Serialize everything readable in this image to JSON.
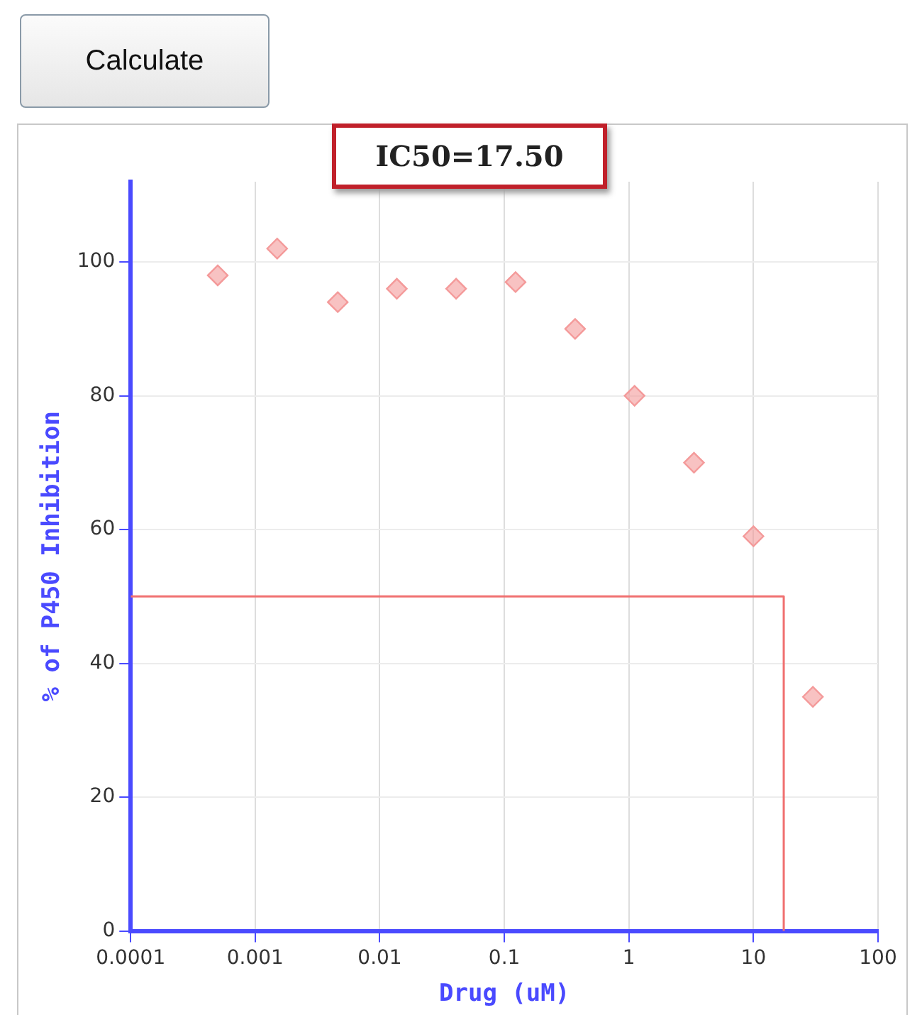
{
  "chart_data": {
    "type": "scatter",
    "title": "IC50=17.50",
    "xlabel": "Drug (uM)",
    "ylabel": "% of P450 Inhibition",
    "annotations": [
      "Calculate"
    ],
    "log": "x",
    "grid": true,
    "xlim": [
      0.0001,
      100
    ],
    "xticks": [
      0.0001,
      0.001,
      0.01,
      0.1,
      1,
      10,
      100
    ],
    "ylim": [
      0,
      112
    ],
    "yticks": [
      0,
      20,
      40,
      60,
      80,
      100
    ],
    "series": [
      {
        "marker": "diamond",
        "color": "#f49a9a",
        "x": [
          0.0005,
          0.0015,
          0.0046,
          0.0137,
          0.041,
          0.123,
          0.37,
          1.11,
          3.33,
          10,
          30
        ],
        "values": [
          98,
          102,
          94,
          96,
          96,
          97,
          90,
          80,
          70,
          59,
          35
        ]
      },
      {
        "type": "line",
        "marker": "none",
        "color": "#f07070",
        "x": [
          0.0001,
          17.5,
          17.5
        ],
        "values": [
          50,
          50,
          0
        ]
      }
    ]
  }
}
